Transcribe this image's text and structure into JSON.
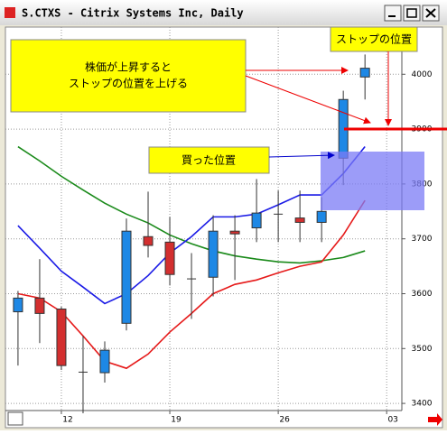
{
  "chart_data": {
    "type": "candlestick",
    "title": "S.CTXS - Citrix Systems Inc, Daily",
    "x": [
      0,
      1,
      2,
      3,
      4,
      5,
      6,
      7,
      8,
      9,
      10,
      11,
      12,
      13,
      14,
      15,
      16
    ],
    "open": [
      3567,
      3592,
      3572,
      3457,
      3456,
      3546,
      3704,
      3694,
      3627,
      3630,
      3714,
      3720,
      3745,
      3738,
      3730,
      3847,
      3995
    ],
    "high": [
      3605,
      3663,
      3576,
      3523,
      3513,
      3737,
      3786,
      3740,
      3674,
      3743,
      3743,
      3809,
      3788,
      3788,
      3776,
      3970,
      4036
    ],
    "low": [
      3469,
      3510,
      3461,
      3382,
      3438,
      3533,
      3666,
      3615,
      3554,
      3595,
      3625,
      3694,
      3694,
      3694,
      3694,
      3798,
      3954
    ],
    "close": [
      3592,
      3564,
      3469,
      3457,
      3497,
      3714,
      3688,
      3635,
      3627,
      3714,
      3709,
      3747,
      3745,
      3730,
      3750,
      3954,
      4011
    ],
    "up_color": "#1e88e5",
    "down_color": "#d32f2f",
    "lines": [
      {
        "color": "#1a8a1a",
        "values": [
          3868,
          3842,
          3814,
          3789,
          3765,
          3745,
          3729,
          3707,
          3691,
          3678,
          3669,
          3663,
          3658,
          3656,
          3660,
          3666,
          3678
        ]
      },
      {
        "color": "#1a1ae6",
        "values": [
          3724,
          3683,
          3641,
          3612,
          3582,
          3600,
          3633,
          3674,
          3704,
          3740,
          3740,
          3745,
          3762,
          3780,
          3780,
          3819,
          3868
        ]
      },
      {
        "color": "#e61a1a",
        "values": [
          3600,
          3592,
          3567,
          3523,
          3477,
          3464,
          3490,
          3530,
          3564,
          3600,
          3617,
          3625,
          3638,
          3650,
          3658,
          3707,
          3770
        ]
      }
    ],
    "xlim": [
      -0.58,
      17.7
    ],
    "xticks": [
      {
        "value": 2,
        "label": "12"
      },
      {
        "value": 7,
        "label": "19"
      },
      {
        "value": 12,
        "label": "26"
      },
      {
        "value": 17,
        "label": "03"
      }
    ],
    "ylim": [
      3387,
      4086
    ],
    "yticks": [
      3400,
      3500,
      3600,
      3700,
      3800,
      3900,
      4000
    ],
    "grid": true,
    "annotations": [
      "株価が上昇すると",
      "ストップの位置を上げる",
      "買った位置",
      "ストップの位置"
    ]
  }
}
